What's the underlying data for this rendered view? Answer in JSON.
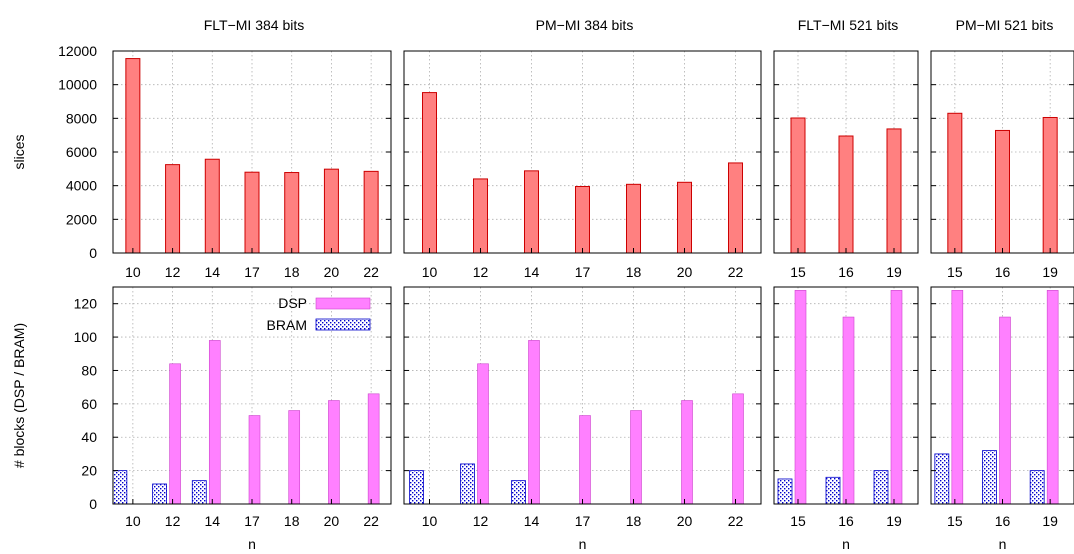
{
  "chart_data": {
    "type": "bar",
    "ylabel_top": "slices",
    "ylabel_bottom": "# blocks (DSP / BRAM)",
    "xlabel": "n",
    "yticks_top": [
      0,
      2000,
      4000,
      6000,
      8000,
      10000,
      12000
    ],
    "ylim_top": [
      0,
      12000
    ],
    "yticks_bottom": [
      0,
      20,
      40,
      60,
      80,
      100,
      120
    ],
    "ylim_bottom": [
      0,
      130
    ],
    "legend": {
      "dsp": "DSP",
      "bram": "BRAM",
      "placement": "top-right of first bottom panel"
    },
    "colors": {
      "slices": "#ff8080",
      "slices_edge": "#cc0000",
      "dsp": "#ff80ff",
      "bram_dot": "#0000cc"
    },
    "panels": [
      {
        "title": "FLT−MI 384 bits",
        "categories": [
          "10",
          "12",
          "14",
          "17",
          "18",
          "20",
          "22"
        ],
        "slices": [
          11550,
          5250,
          5570,
          4800,
          4780,
          4980,
          4850
        ],
        "dsp": [
          0,
          84,
          98,
          53,
          56,
          62,
          66
        ],
        "bram": [
          20,
          12,
          14,
          0,
          0,
          0,
          0
        ]
      },
      {
        "title": "PM−MI 384 bits",
        "categories": [
          "10",
          "12",
          "14",
          "17",
          "18",
          "20",
          "22"
        ],
        "slices": [
          9530,
          4400,
          4880,
          3950,
          4080,
          4200,
          5350
        ],
        "dsp": [
          0,
          84,
          98,
          53,
          56,
          62,
          66
        ],
        "bram": [
          20,
          24,
          14,
          0,
          0,
          0,
          0
        ]
      },
      {
        "title": "FLT−MI 521 bits",
        "categories": [
          "15",
          "16",
          "19"
        ],
        "slices": [
          8020,
          6950,
          7370
        ],
        "dsp": [
          128,
          112,
          128
        ],
        "bram": [
          15,
          16,
          20
        ]
      },
      {
        "title": "PM−MI 521 bits",
        "categories": [
          "15",
          "16",
          "19"
        ],
        "slices": [
          8300,
          7280,
          8050
        ],
        "dsp": [
          128,
          112,
          128
        ],
        "bram": [
          30,
          32,
          20
        ]
      }
    ]
  }
}
